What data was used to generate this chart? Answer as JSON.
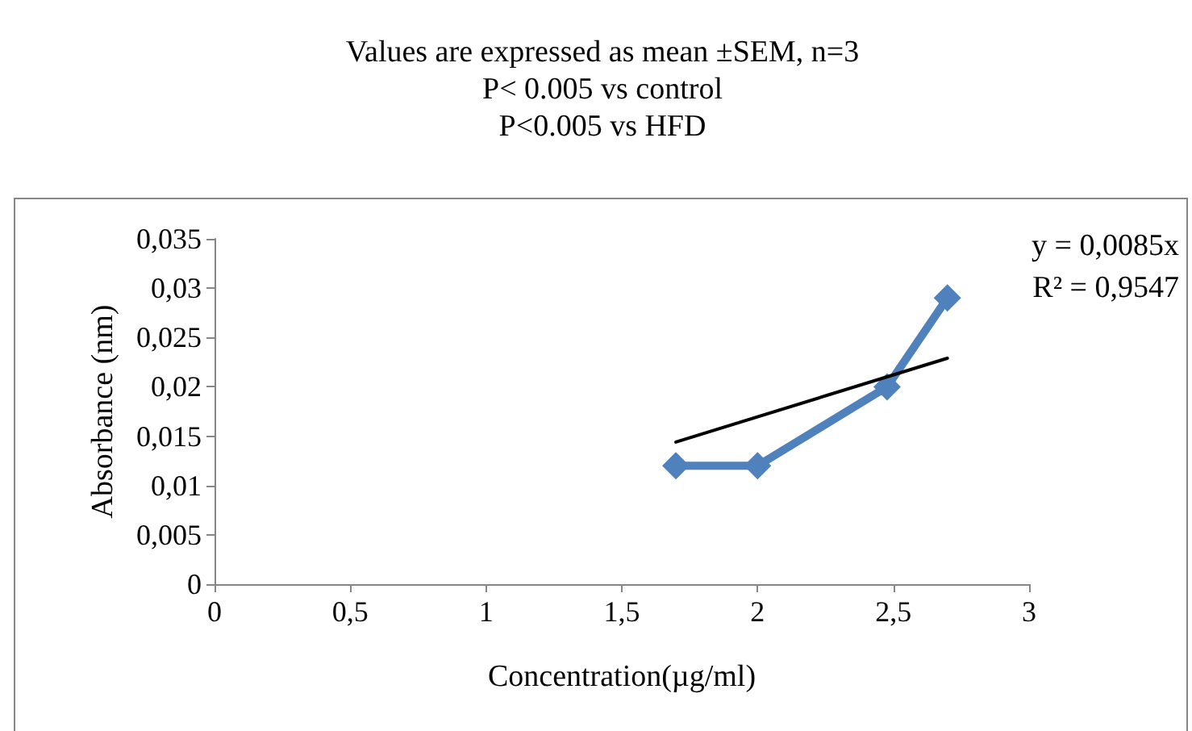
{
  "chart_data": {
    "type": "line",
    "title": "Values are expressed as mean ±SEM, n=3\nP< 0.005 vs control\nP<0.005 vs HFD",
    "xlabel": "Concentration(µg/ml)",
    "ylabel": "Absorbance (nm)",
    "annotations": [
      "y = 0,0085x",
      "R² = 0,9547"
    ],
    "marker": "diamond",
    "line_style": "solid",
    "grid": false,
    "xlim": [
      0,
      3
    ],
    "xticks": [
      0,
      {
        "value": 0.5,
        "label": "0,5"
      },
      1,
      {
        "value": 1.5,
        "label": "1,5"
      },
      2,
      {
        "value": 2.5,
        "label": "2,5"
      },
      3
    ],
    "ylim": [
      0,
      0.035
    ],
    "yticks": [
      0,
      {
        "value": 0.005,
        "label": "0,005"
      },
      {
        "value": 0.01,
        "label": "0,01"
      },
      {
        "value": 0.015,
        "label": "0,015"
      },
      {
        "value": 0.02,
        "label": "0,02"
      },
      {
        "value": 0.025,
        "label": "0,025"
      },
      {
        "value": 0.03,
        "label": "0,03"
      },
      {
        "value": 0.035,
        "label": "0,035"
      }
    ],
    "series": [
      {
        "color": "#4f81bd",
        "x": [
          1.699,
          2,
          2.477,
          2.699
        ],
        "values": [
          0.012,
          0.012,
          0.02,
          0.029
        ]
      },
      {
        "type": "line",
        "marker": "none",
        "color": "#000000",
        "x": [
          1.699,
          2.699
        ],
        "values": [
          0.0144,
          0.0229
        ]
      }
    ]
  }
}
